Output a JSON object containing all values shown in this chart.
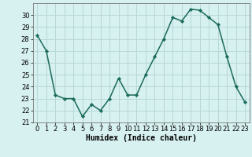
{
  "x": [
    0,
    1,
    2,
    3,
    4,
    5,
    6,
    7,
    8,
    9,
    10,
    11,
    12,
    13,
    14,
    15,
    16,
    17,
    18,
    19,
    20,
    21,
    22,
    23
  ],
  "y": [
    28.3,
    27.0,
    23.3,
    23.0,
    23.0,
    21.5,
    22.5,
    22.0,
    23.0,
    24.7,
    23.3,
    23.3,
    25.0,
    26.5,
    28.0,
    29.8,
    29.5,
    30.5,
    30.4,
    29.8,
    29.2,
    26.5,
    24.0,
    22.7
  ],
  "line_color": "#1a6b5a",
  "marker": "D",
  "marker_size": 2.2,
  "bg_color": "#d7f0f0",
  "grid_color": "#b8d8d8",
  "xlabel": "Humidex (Indice chaleur)",
  "ylim": [
    21,
    31
  ],
  "xlim": [
    -0.5,
    23.5
  ],
  "yticks": [
    21,
    22,
    23,
    24,
    25,
    26,
    27,
    28,
    29,
    30
  ],
  "xticks": [
    0,
    1,
    2,
    3,
    4,
    5,
    6,
    7,
    8,
    9,
    10,
    11,
    12,
    13,
    14,
    15,
    16,
    17,
    18,
    19,
    20,
    21,
    22,
    23
  ],
  "xlabel_fontsize": 7,
  "tick_fontsize": 6,
  "linewidth": 1.1
}
